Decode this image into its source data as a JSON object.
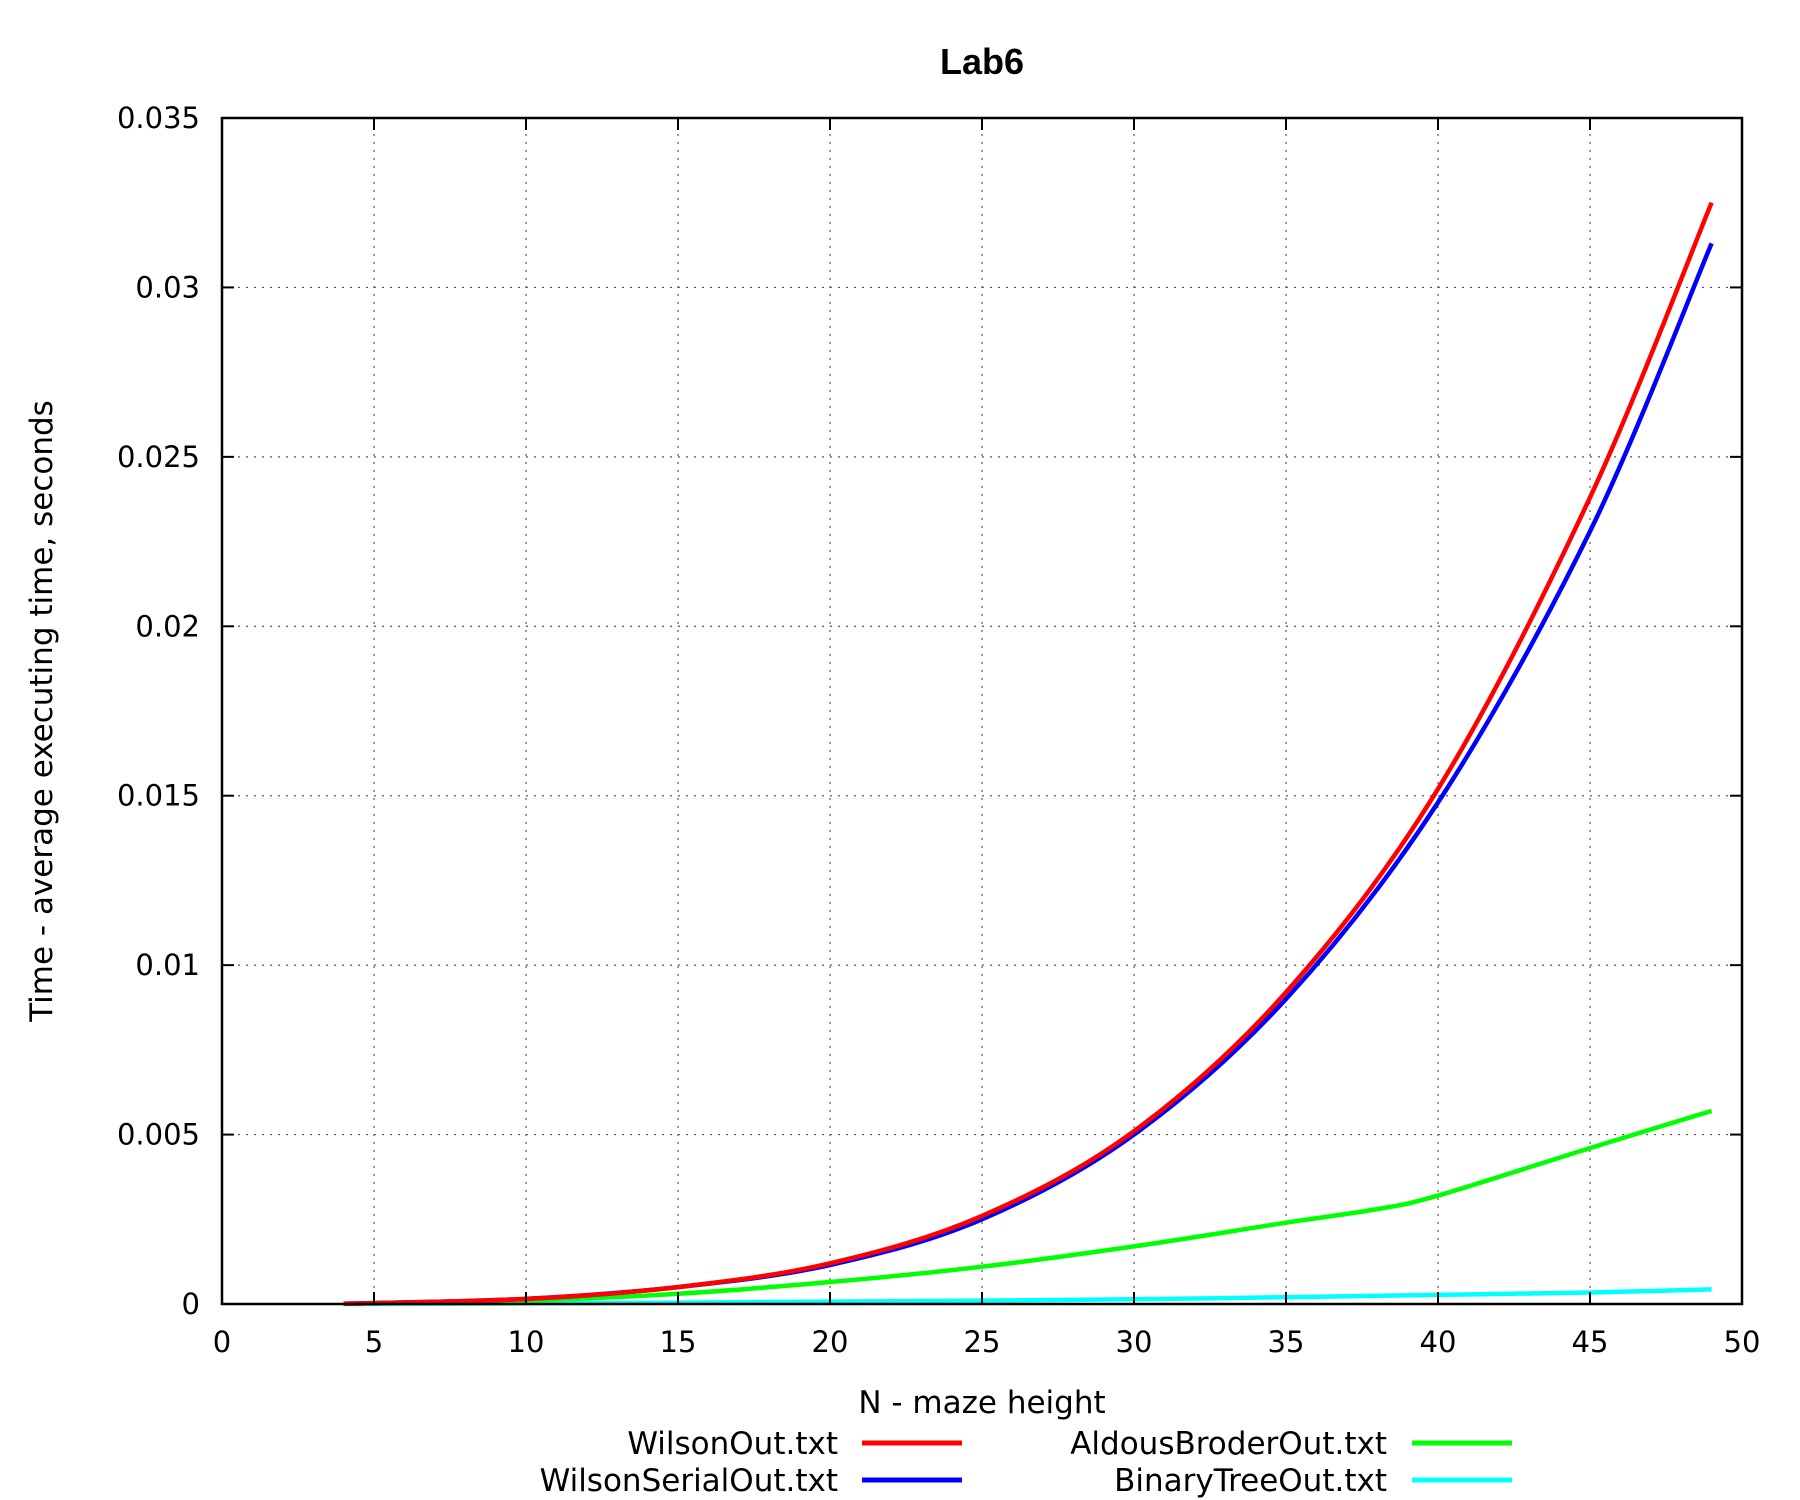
{
  "chart_data": {
    "type": "line",
    "title": "Lab6",
    "xlabel": "N - maze height",
    "ylabel": "Time - average executing time, seconds",
    "xlim": [
      0,
      50
    ],
    "ylim": [
      0,
      0.035
    ],
    "xticks": [
      0,
      5,
      10,
      15,
      20,
      25,
      30,
      35,
      40,
      45,
      50
    ],
    "xtick_labels": [
      "0",
      "5",
      "10",
      "15",
      "20",
      "25",
      "30",
      "35",
      "40",
      "45",
      "50"
    ],
    "yticks": [
      0,
      0.005,
      0.01,
      0.015,
      0.02,
      0.025,
      0.03,
      0.035
    ],
    "ytick_labels": [
      "0",
      "0.005",
      "0.01",
      "0.015",
      "0.02",
      "0.025",
      "0.03",
      "0.035"
    ],
    "grid": true,
    "legend_position": "bottom",
    "series": [
      {
        "name": "WilsonOut.txt",
        "color": "#ff0000",
        "x": [
          4,
          10,
          15,
          20,
          25,
          30,
          35,
          40,
          45,
          49
        ],
        "y": [
          1e-05,
          0.00015,
          0.0005,
          0.0012,
          0.0026,
          0.0051,
          0.0092,
          0.0152,
          0.0238,
          0.0325
        ]
      },
      {
        "name": "WilsonSerialOut.txt",
        "color": "#0000ff",
        "x": [
          4,
          10,
          15,
          20,
          25,
          30,
          35,
          40,
          45,
          49
        ],
        "y": [
          1e-05,
          0.00015,
          0.0005,
          0.00115,
          0.0025,
          0.005,
          0.009,
          0.0148,
          0.0228,
          0.0313
        ]
      },
      {
        "name": "AldousBroderOut.txt",
        "color": "#00ff00",
        "x": [
          4,
          10,
          15,
          20,
          25,
          30,
          35,
          38,
          40,
          45,
          49
        ],
        "y": [
          1e-05,
          0.0001,
          0.0003,
          0.00065,
          0.0011,
          0.0017,
          0.0024,
          0.0028,
          0.0032,
          0.0046,
          0.0057
        ]
      },
      {
        "name": "BinaryTreeOut.txt",
        "color": "#00ffff",
        "x": [
          4,
          10,
          15,
          20,
          25,
          30,
          35,
          40,
          45,
          49
        ],
        "y": [
          0.0,
          2e-05,
          4e-05,
          7e-05,
          0.0001,
          0.00014,
          0.0002,
          0.00027,
          0.00034,
          0.00043
        ]
      }
    ]
  }
}
